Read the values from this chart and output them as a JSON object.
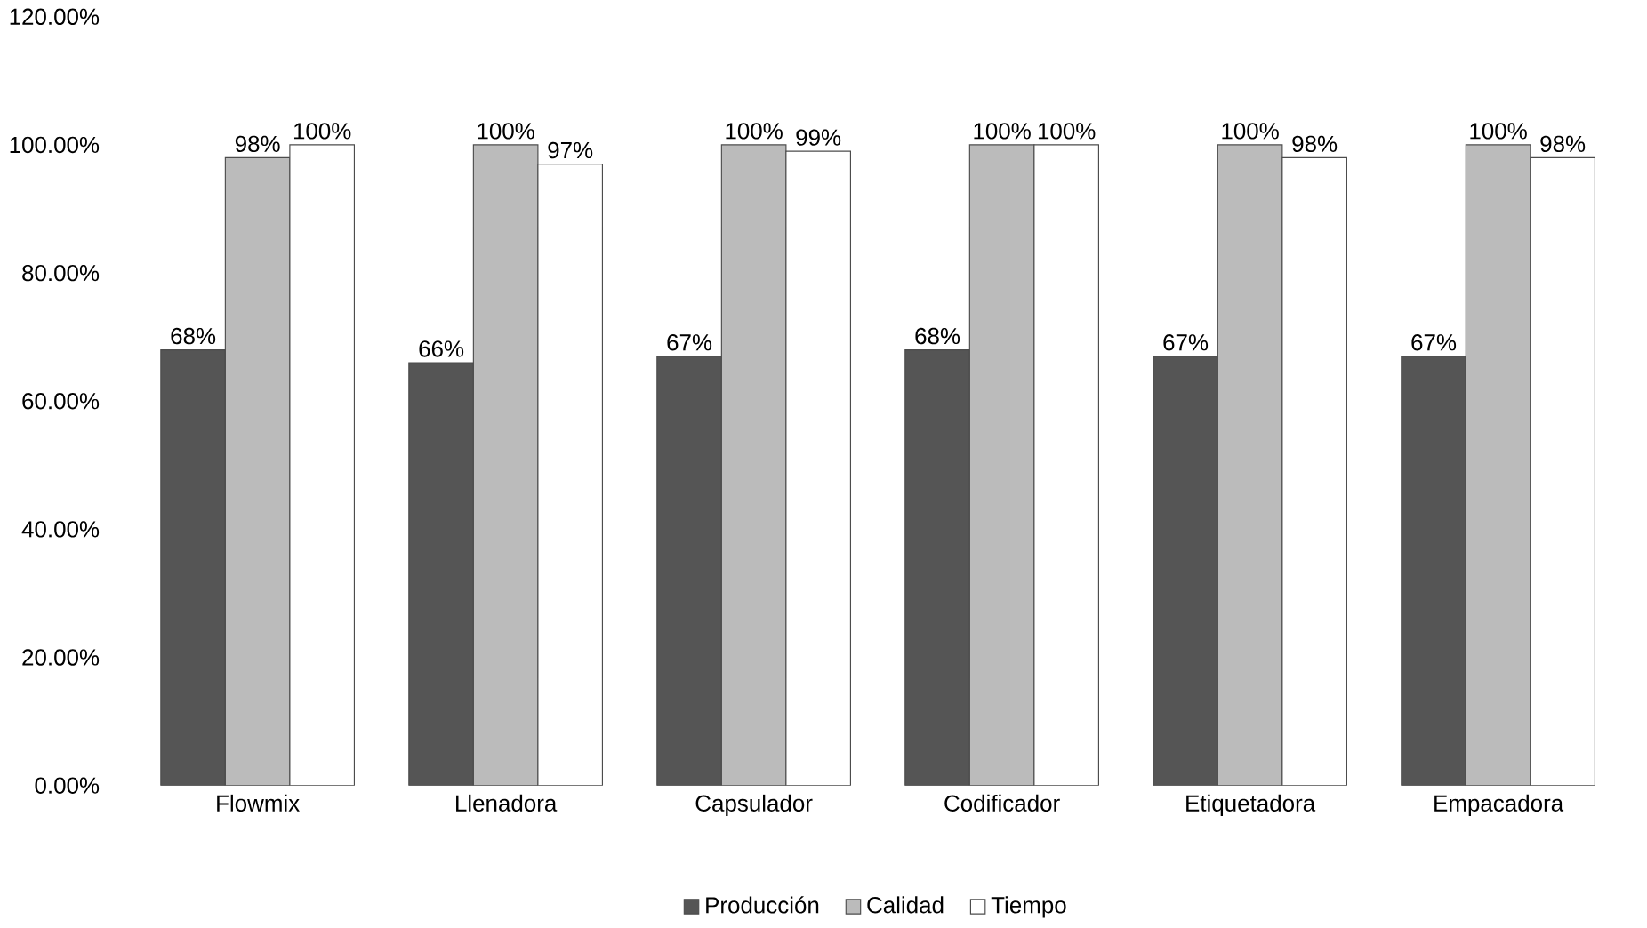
{
  "chart_data": {
    "type": "bar",
    "categories": [
      "Flowmix",
      "Llenadora",
      "Capsulador",
      "Codificador",
      "Etiquetadora",
      "Empacadora"
    ],
    "series": [
      {
        "name": "Producción",
        "color": "#555555",
        "values": [
          68,
          66,
          67,
          68,
          67,
          67
        ],
        "value_labels": [
          "68%",
          "66%",
          "67%",
          "68%",
          "67%",
          "67%"
        ]
      },
      {
        "name": "Calidad",
        "color": "#bbbbbb",
        "values": [
          98,
          100,
          100,
          100,
          100,
          100
        ],
        "value_labels": [
          "98%",
          "100%",
          "100%",
          "100%",
          "100%",
          "100%"
        ]
      },
      {
        "name": "Tiempo",
        "color": "#ffffff",
        "values": [
          100,
          97,
          99,
          100,
          98,
          98
        ],
        "value_labels": [
          "100%",
          "97%",
          "99%",
          "100%",
          "98%",
          "98%"
        ]
      }
    ],
    "ylim": [
      0,
      120
    ],
    "yticks": [
      {
        "value": 0,
        "label": "0.00%"
      },
      {
        "value": 20,
        "label": "20.00%"
      },
      {
        "value": 40,
        "label": "40.00%"
      },
      {
        "value": 60,
        "label": "60.00%"
      },
      {
        "value": 80,
        "label": "80.00%"
      },
      {
        "value": 100,
        "label": "100.00%"
      },
      {
        "value": 120,
        "label": "120.00%"
      }
    ],
    "grid": false,
    "legend": "bottom"
  }
}
